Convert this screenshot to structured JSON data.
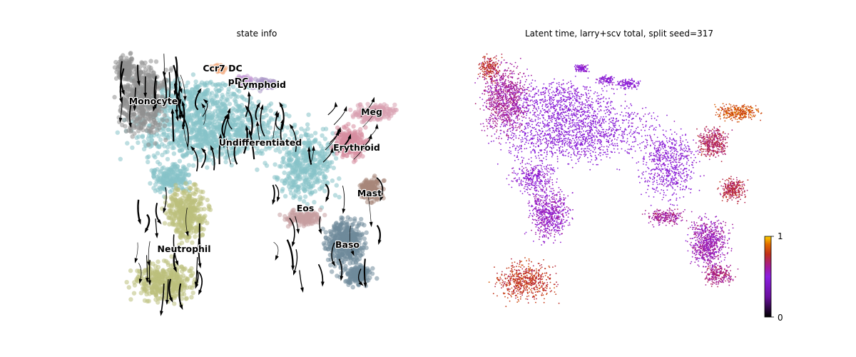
{
  "chart_data": [
    {
      "type": "scatter",
      "subtype": "embedding-velocity-streamplot",
      "title": "state info",
      "axes_visible": false,
      "legend": "on-data",
      "clusters": [
        {
          "name": "Monocyte",
          "color": "#8f8f8f"
        },
        {
          "name": "Ccr7 DC",
          "color": "#f2a77a"
        },
        {
          "name": "pDC",
          "color": "#c49ad6"
        },
        {
          "name": "Lymphoid",
          "color": "#a996c7"
        },
        {
          "name": "Meg",
          "color": "#d8a0b0"
        },
        {
          "name": "Undifferentiated",
          "color": "#86c3c9"
        },
        {
          "name": "Erythroid",
          "color": "#d78ea0"
        },
        {
          "name": "Mast",
          "color": "#a8877a"
        },
        {
          "name": "Eos",
          "color": "#c79ea0"
        },
        {
          "name": "Neutrophil",
          "color": "#bcbf7c"
        },
        {
          "name": "Baso",
          "color": "#6f8b9a"
        }
      ],
      "streamlines": "velocity stream arrows (black)"
    },
    {
      "type": "scatter",
      "subtype": "embedding-continuous",
      "title": "Latent time, larry+scv total, split seed=317",
      "axes_visible": false,
      "colormap": "gnuplot",
      "colorbar": {
        "min": 0,
        "max": 1,
        "ticks": [
          "0",
          "1"
        ],
        "position": "right"
      }
    }
  ]
}
